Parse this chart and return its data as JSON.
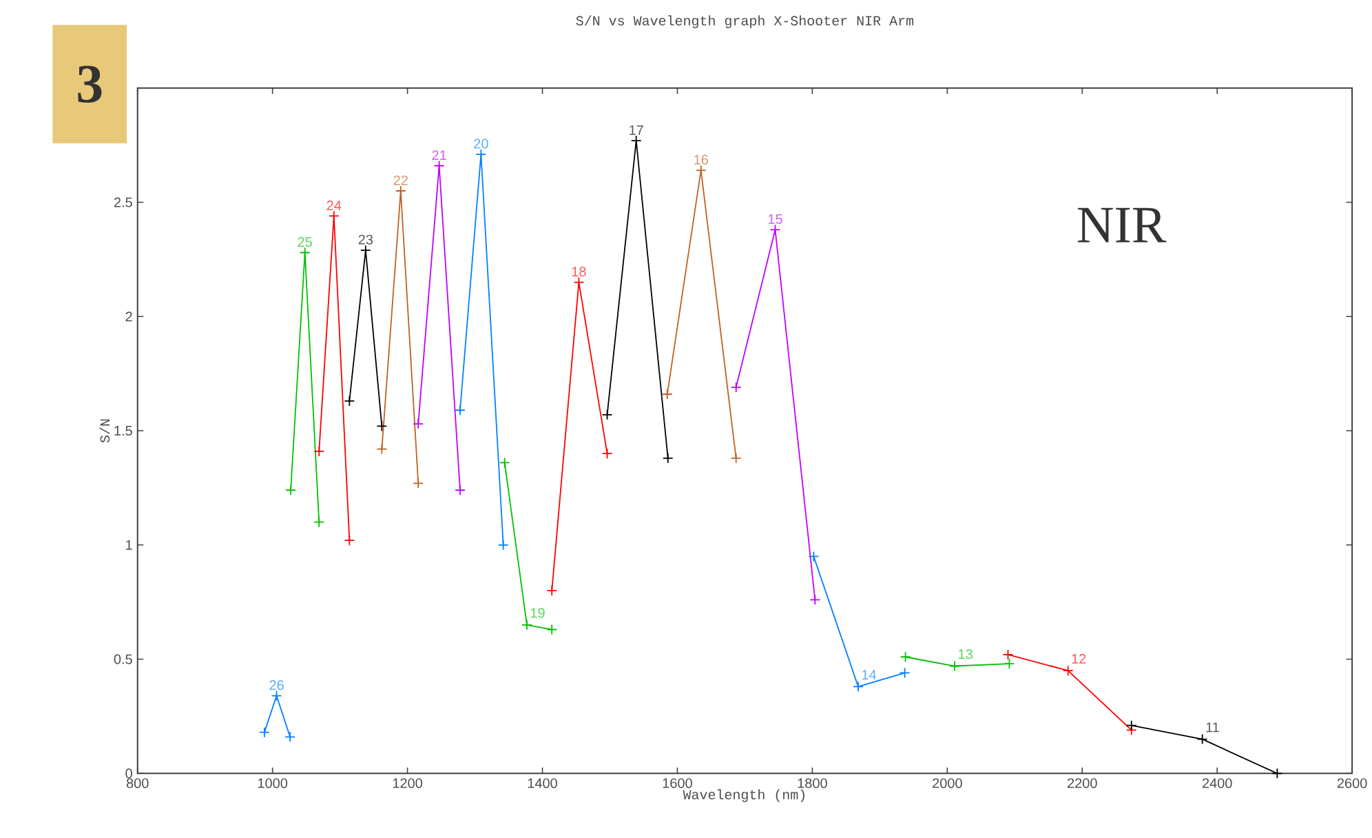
{
  "chart_data": {
    "type": "line",
    "title": "S/N vs Wavelength graph X-Shooter NIR Arm",
    "xlabel": "Wavelength (nm)",
    "ylabel": "S/N",
    "annotations": [
      "3",
      "NIR"
    ],
    "xlim": [
      800,
      2600
    ],
    "ylim": [
      0,
      3
    ],
    "xticks": [
      800,
      1000,
      1200,
      1400,
      1600,
      1800,
      2000,
      2200,
      2400,
      2600
    ],
    "yticks": [
      0,
      0.5,
      1,
      1.5,
      2,
      2.5
    ],
    "grid": false,
    "legend": false,
    "marker": "cross",
    "line_style": "solid",
    "series": [
      {
        "name": "26",
        "color": "#0080ff",
        "x": [
          988,
          1006,
          1026
        ],
        "values": [
          0.18,
          0.34,
          0.16
        ]
      },
      {
        "name": "25",
        "color": "#00c000",
        "x": [
          1027,
          1048,
          1069
        ],
        "values": [
          1.24,
          2.28,
          1.1
        ]
      },
      {
        "name": "24",
        "color": "#ff0000",
        "x": [
          1069,
          1091,
          1114
        ],
        "values": [
          1.41,
          2.44,
          1.02
        ]
      },
      {
        "name": "23",
        "color": "#000000",
        "x": [
          1114,
          1138,
          1162
        ],
        "values": [
          1.63,
          2.29,
          1.52
        ]
      },
      {
        "name": "22",
        "color": "#c06020",
        "x": [
          1162,
          1190,
          1216
        ],
        "values": [
          1.42,
          2.55,
          1.27
        ]
      },
      {
        "name": "21",
        "color": "#c000ff",
        "x": [
          1216,
          1247,
          1278
        ],
        "values": [
          1.53,
          2.66,
          1.24
        ]
      },
      {
        "name": "20",
        "color": "#0080ff",
        "x": [
          1278,
          1309,
          1342
        ],
        "values": [
          1.59,
          2.71,
          1.0
        ]
      },
      {
        "name": "19",
        "color": "#00c000",
        "x": [
          1344,
          1377,
          1414
        ],
        "values": [
          1.36,
          0.65,
          0.63
        ]
      },
      {
        "name": "18",
        "color": "#ff0000",
        "x": [
          1414,
          1454,
          1496
        ],
        "values": [
          0.8,
          2.15,
          1.4
        ]
      },
      {
        "name": "17",
        "color": "#000000",
        "x": [
          1496,
          1539,
          1586
        ],
        "values": [
          1.57,
          2.77,
          1.38
        ]
      },
      {
        "name": "16",
        "color": "#c06020",
        "x": [
          1585,
          1635,
          1687
        ],
        "values": [
          1.66,
          2.64,
          1.38
        ]
      },
      {
        "name": "15",
        "color": "#c000ff",
        "x": [
          1687,
          1745,
          1804
        ],
        "values": [
          1.69,
          2.38,
          0.76
        ]
      },
      {
        "name": "14",
        "color": "#0080ff",
        "x": [
          1802,
          1868,
          1937
        ],
        "values": [
          0.95,
          0.38,
          0.44
        ]
      },
      {
        "name": "13",
        "color": "#00c000",
        "x": [
          1938,
          2011,
          2092
        ],
        "values": [
          0.51,
          0.47,
          0.48
        ]
      },
      {
        "name": "12",
        "color": "#ff0000",
        "x": [
          2090,
          2179,
          2273
        ],
        "values": [
          0.52,
          0.45,
          0.19
        ]
      },
      {
        "name": "11",
        "color": "#000000",
        "x": [
          2273,
          2378,
          2489
        ],
        "values": [
          0.21,
          0.15,
          0.0
        ]
      }
    ]
  }
}
